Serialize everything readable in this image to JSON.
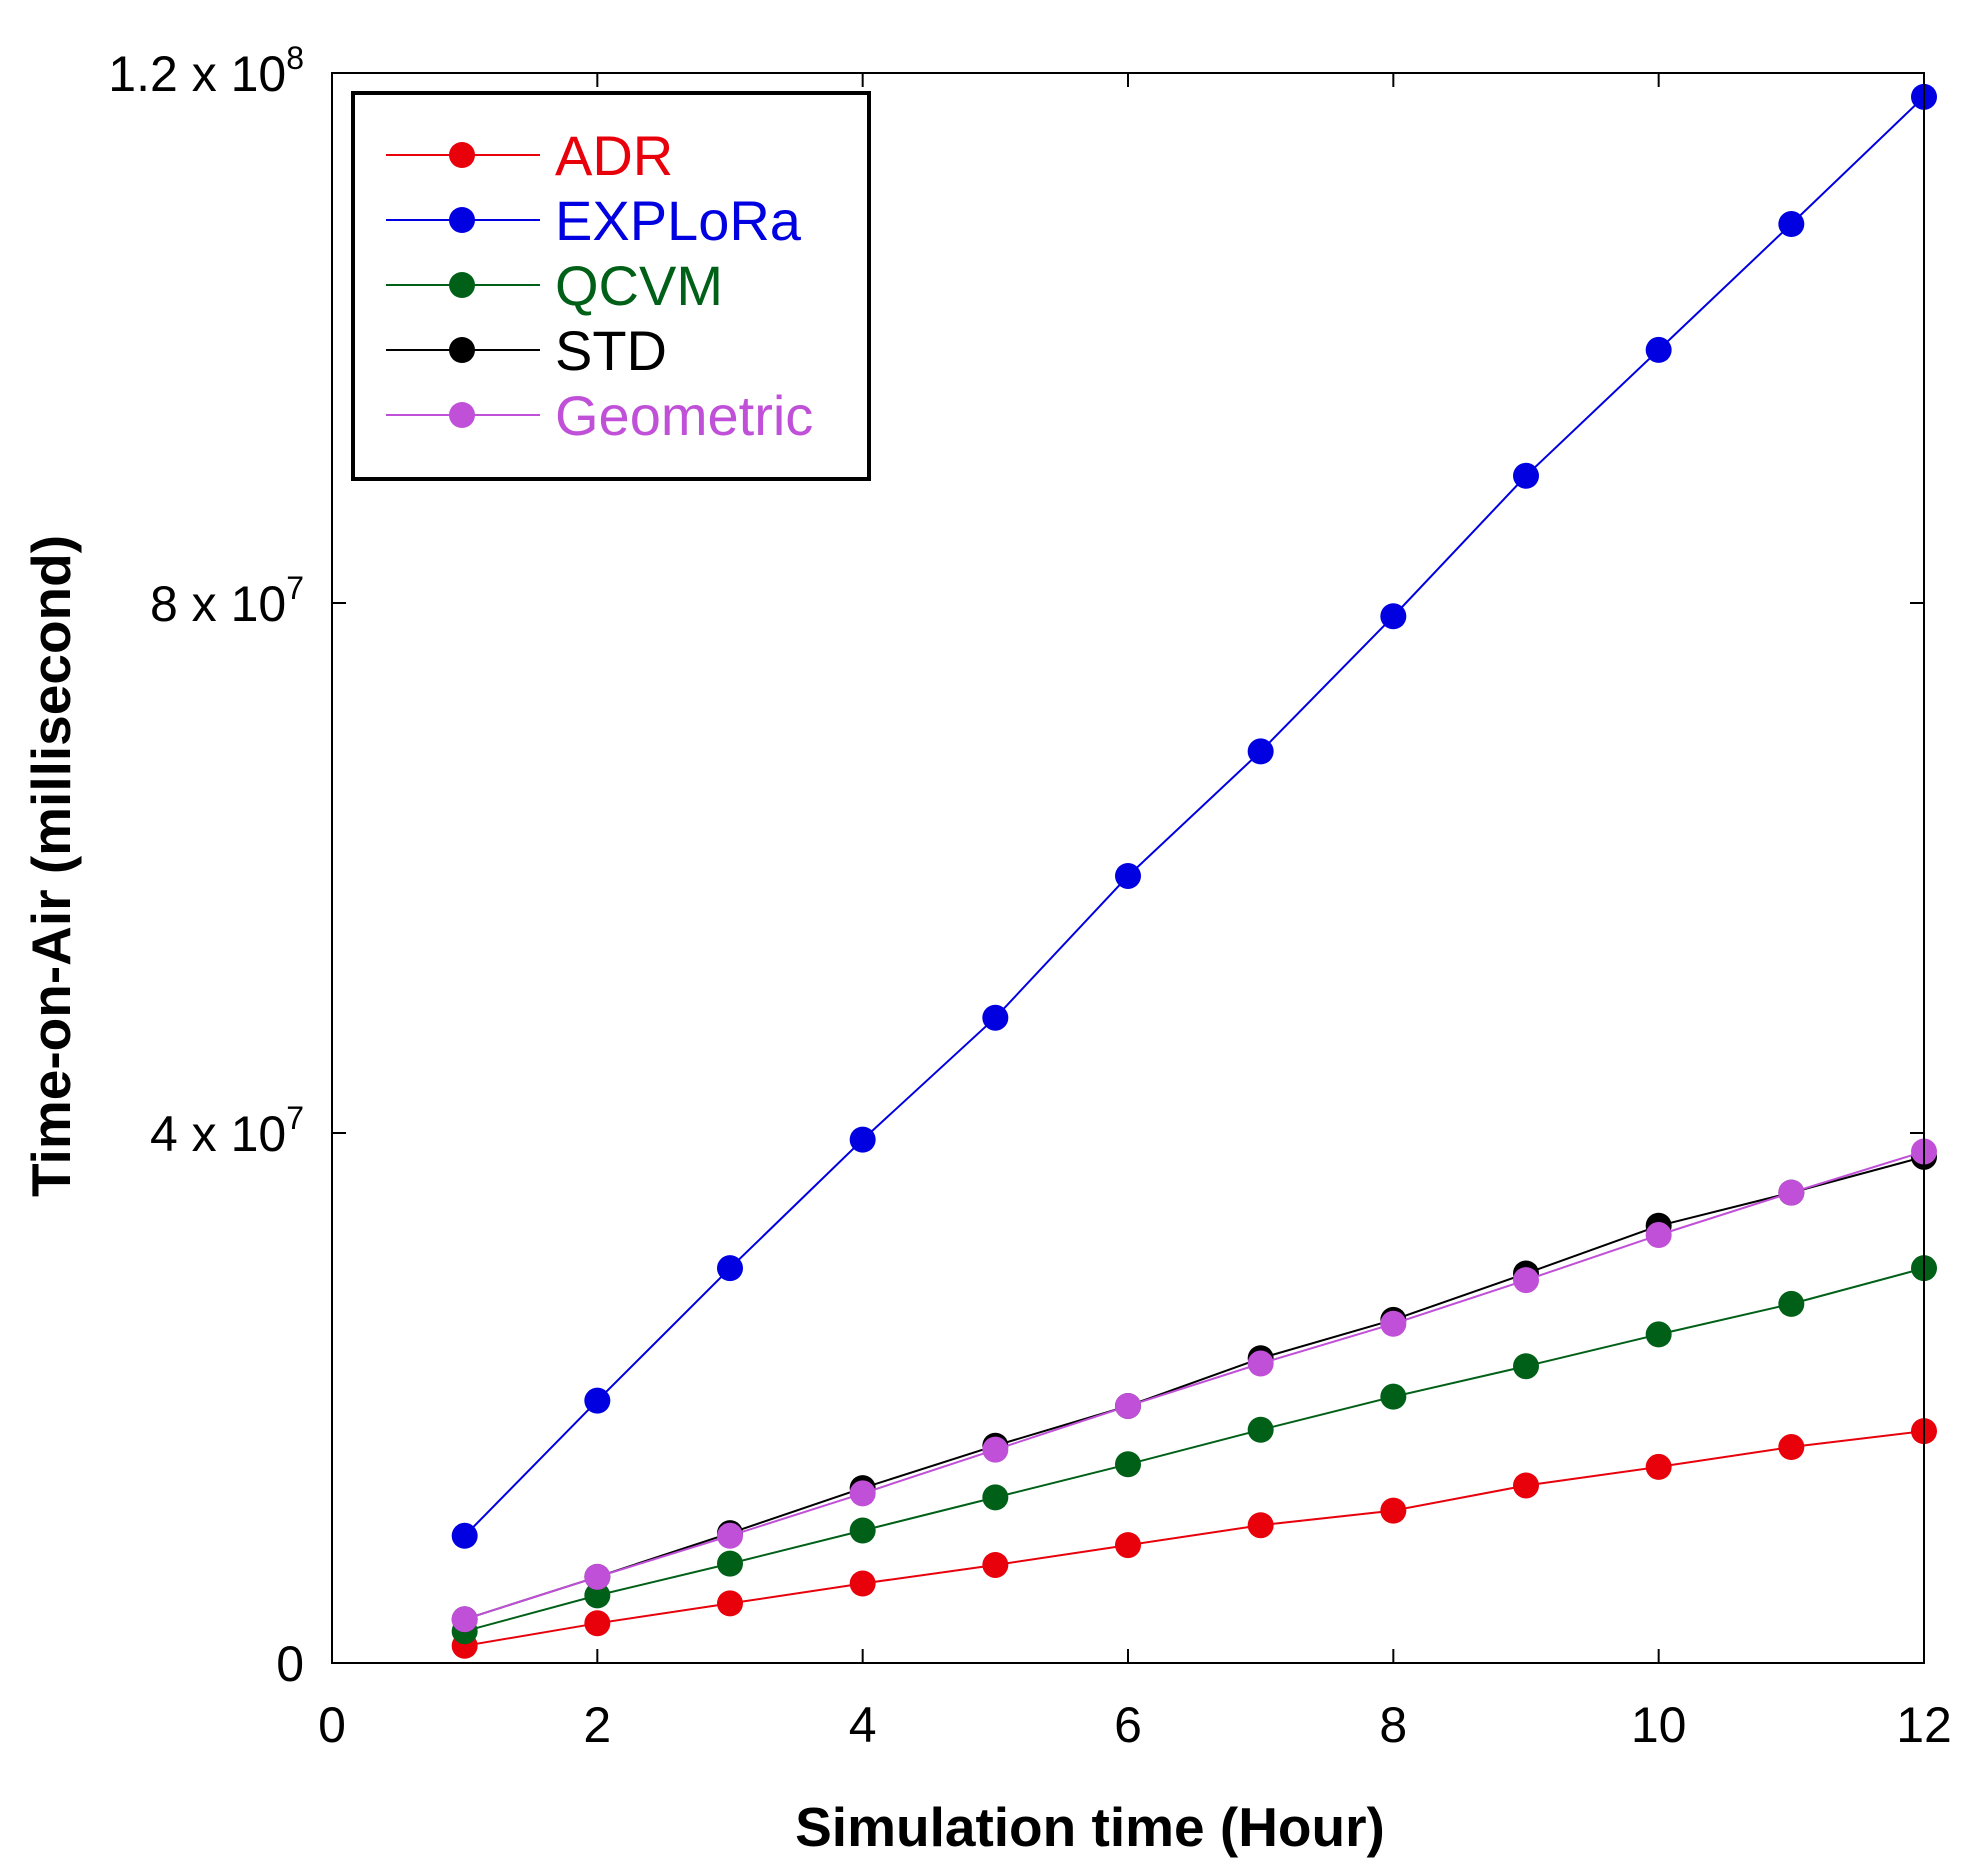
{
  "chart_data": {
    "type": "line",
    "title": "",
    "xlabel": "Simulation time (Hour)",
    "ylabel": "Time-on-Air (millisecond)",
    "xlim": [
      0,
      12
    ],
    "ylim": [
      0,
      120000000
    ],
    "xticks": [
      0,
      2,
      4,
      6,
      8,
      10,
      12
    ],
    "xtick_labels": [
      "0",
      "2",
      "4",
      "6",
      "8",
      "10",
      "12"
    ],
    "yticks": [
      {
        "value": 0,
        "mantissa": "0",
        "exponent": ""
      },
      {
        "value": 40000000,
        "mantissa": "4 x 10",
        "exponent": "7"
      },
      {
        "value": 80000000,
        "mantissa": "8 x 10",
        "exponent": "7"
      },
      {
        "value": 120000000,
        "mantissa": "1.2 x 10",
        "exponent": "8"
      }
    ],
    "grid": false,
    "legend_position": "top-left",
    "x": [
      1,
      2,
      3,
      4,
      5,
      6,
      7,
      8,
      9,
      10,
      11,
      12
    ],
    "series": [
      {
        "name": "ADR",
        "color": "#e8000b",
        "values": [
          1300000,
          3000000,
          4500000,
          6000000,
          7400000,
          8900000,
          10400000,
          11500000,
          13400000,
          14800000,
          16300000,
          17500000
        ]
      },
      {
        "name": "EXPLoRa",
        "color": "#0000e0",
        "values": [
          9600000,
          19800000,
          29800000,
          39500000,
          48700000,
          59400000,
          68800000,
          79000000,
          89600000,
          99100000,
          108600000,
          118200000
        ]
      },
      {
        "name": "QCVM",
        "color": "#006018",
        "values": [
          2400000,
          5100000,
          7500000,
          10000000,
          12500000,
          15000000,
          17600000,
          20100000,
          22400000,
          24800000,
          27100000,
          29800000
        ]
      },
      {
        "name": "STD",
        "color": "#000000",
        "values": [
          3300000,
          6500000,
          9800000,
          13200000,
          16400000,
          19400000,
          23000000,
          25900000,
          29400000,
          33000000,
          35500000,
          38200000
        ]
      },
      {
        "name": "Geometric",
        "color": "#c050d8",
        "values": [
          3300000,
          6500000,
          9600000,
          12800000,
          16100000,
          19400000,
          22600000,
          25600000,
          28900000,
          32300000,
          35500000,
          38600000
        ]
      }
    ]
  }
}
